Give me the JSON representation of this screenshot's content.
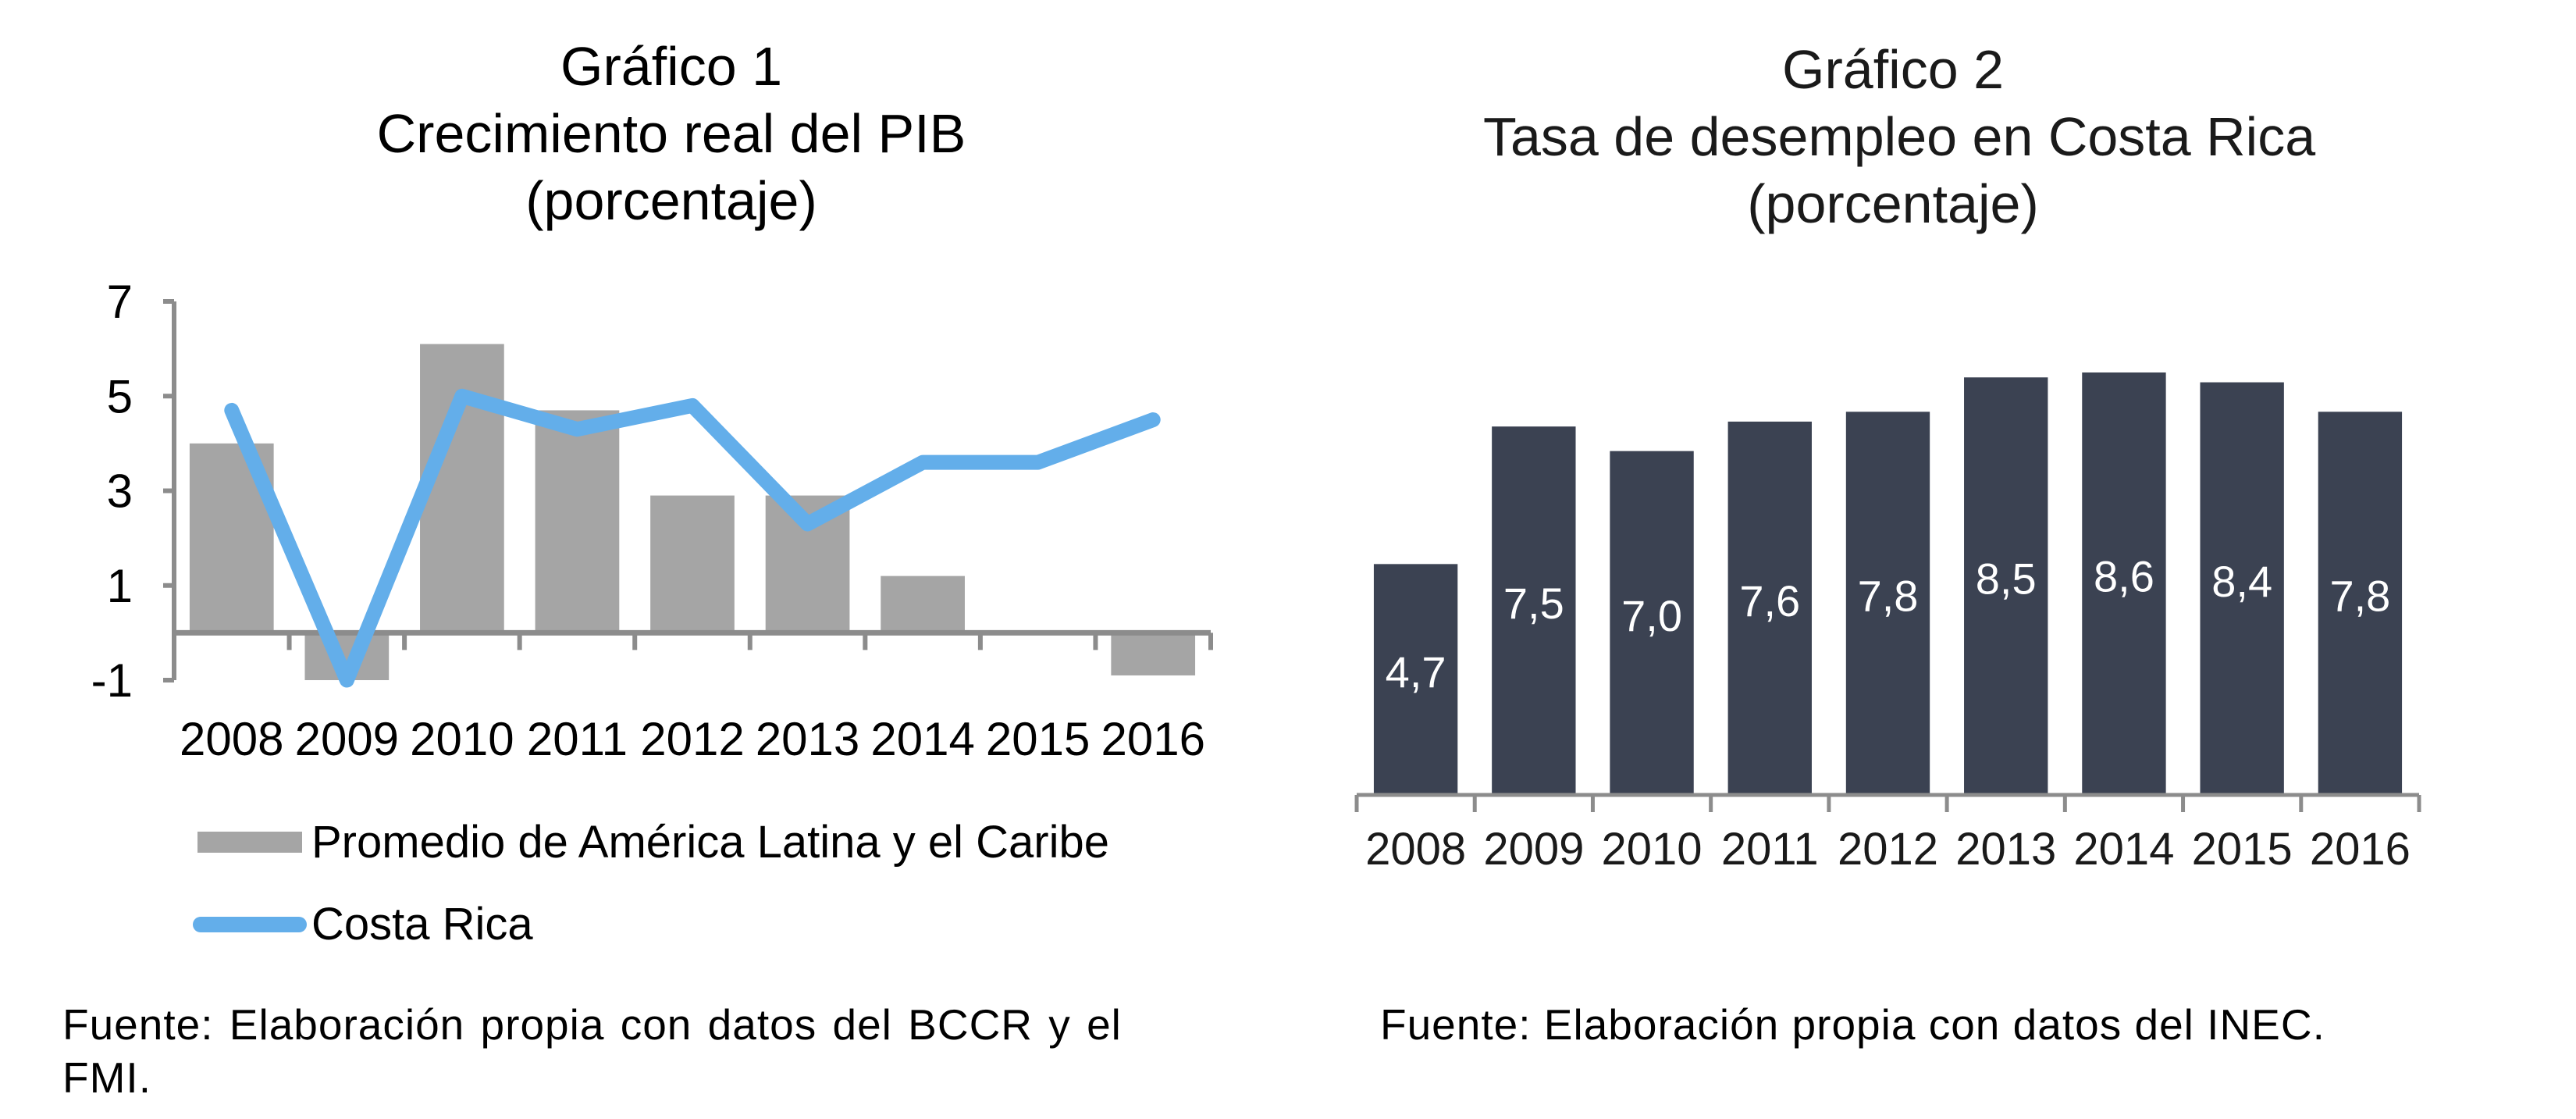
{
  "chart_data": [
    {
      "type": "bar+line",
      "title": "Gráfico 1",
      "subtitle": "Crecimiento real del PIB",
      "unit_note": "(porcentaje)",
      "categories": [
        "2008",
        "2009",
        "2010",
        "2011",
        "2012",
        "2013",
        "2014",
        "2015",
        "2016"
      ],
      "series": [
        {
          "name": "Promedio de América Latina y el Caribe",
          "kind": "bar",
          "color": "#a5a5a5",
          "values": [
            4.0,
            -1.0,
            6.1,
            4.7,
            2.9,
            2.9,
            1.2,
            0.0,
            -0.9
          ]
        },
        {
          "name": "Costa Rica",
          "kind": "line",
          "color": "#63aeea",
          "values": [
            4.7,
            -1.0,
            5.0,
            4.3,
            4.8,
            2.3,
            3.6,
            3.6,
            4.5
          ]
        }
      ],
      "yticks": [
        7,
        5,
        3,
        1,
        -1
      ],
      "ylim": [
        -1,
        7
      ],
      "xlabel": "",
      "ylabel": "",
      "grid": false,
      "legend_position": "bottom-left",
      "source": "Fuente: Elaboración propia con datos del BCCR y el FMI."
    },
    {
      "type": "bar",
      "title": "Gráfico 2",
      "subtitle": "Tasa de desempleo en Costa Rica",
      "unit_note": "(porcentaje)",
      "categories": [
        "2008",
        "2009",
        "2010",
        "2011",
        "2012",
        "2013",
        "2014",
        "2015",
        "2016"
      ],
      "values": [
        4.7,
        7.5,
        7.0,
        7.6,
        7.8,
        8.5,
        8.6,
        8.4,
        7.8
      ],
      "data_labels": [
        "4,7",
        "7,5",
        "7,0",
        "7,6",
        "7,8",
        "8,5",
        "8,6",
        "8,4",
        "7,8"
      ],
      "color": "#3b4252",
      "ylim": [
        0,
        8.6
      ],
      "xlabel": "",
      "ylabel": "",
      "grid": false,
      "source": "Fuente: Elaboración propia con datos del INEC."
    }
  ]
}
